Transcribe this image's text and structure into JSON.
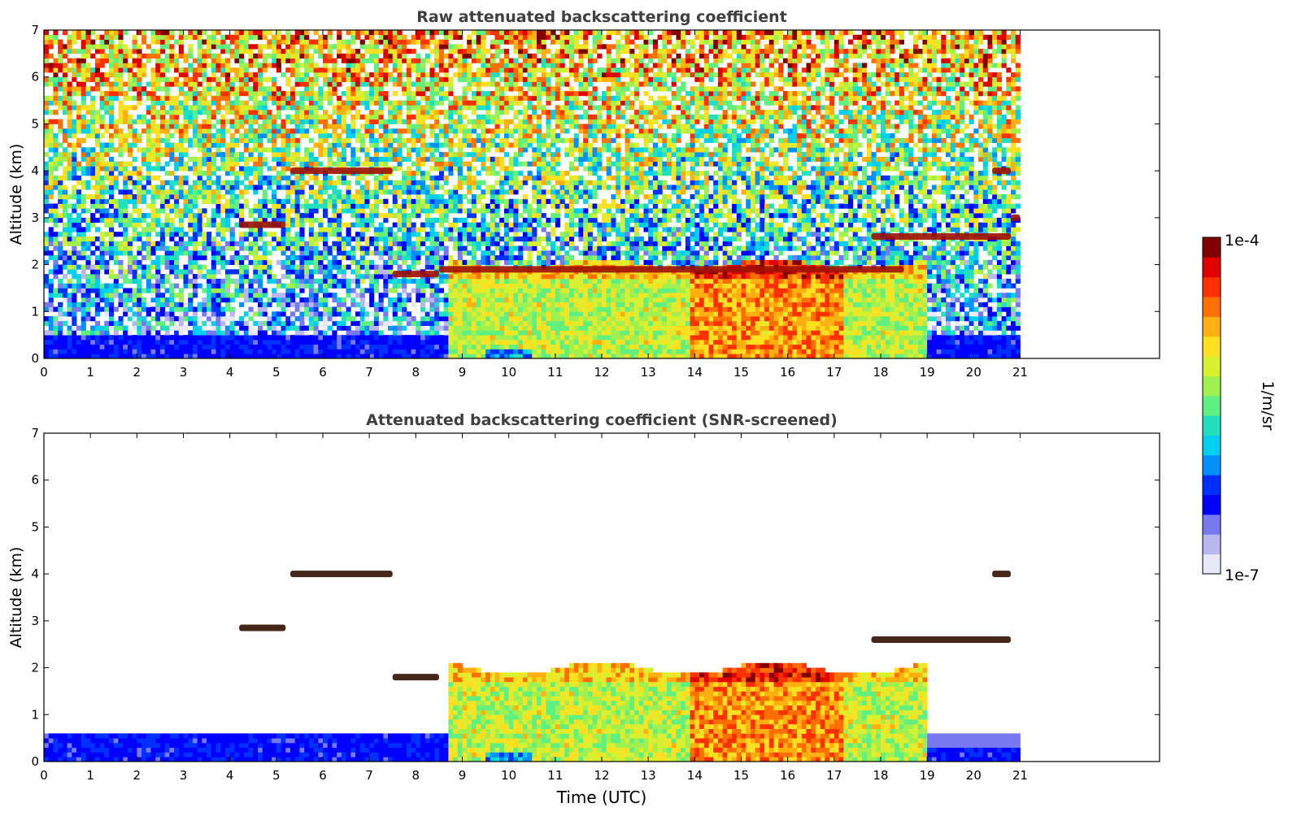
{
  "figure": {
    "colorbar": {
      "label": "1/m/sr",
      "top_label": "1e-4",
      "bottom_label": "1e-7",
      "scale": "log",
      "colormap": "jet",
      "colors": [
        "#e8e8f8",
        "#b8b8ee",
        "#7878f0",
        "#0000ff",
        "#0030ff",
        "#0090ff",
        "#00d0f0",
        "#20e0c0",
        "#60f080",
        "#a0f050",
        "#d8f030",
        "#ffe020",
        "#ffb010",
        "#ff7000",
        "#ff3000",
        "#e00000",
        "#800000"
      ]
    },
    "shared_xlabel": "Time (UTC)"
  },
  "chart_data": [
    {
      "type": "heatmap",
      "title": "Raw attenuated backscattering coefficient",
      "xlabel": "",
      "ylabel": "Altitude (km)",
      "xlim": [
        0,
        24
      ],
      "ylim": [
        0,
        7
      ],
      "xticks": [
        "0",
        "1",
        "2",
        "3",
        "4",
        "5",
        "6",
        "7",
        "8",
        "9",
        "10",
        "11",
        "12",
        "13",
        "14",
        "15",
        "16",
        "17",
        "18",
        "19",
        "20",
        "21"
      ],
      "yticks": [
        "0",
        "1",
        "2",
        "3",
        "4",
        "5",
        "6",
        "7"
      ],
      "data_extent_hours": [
        0,
        21
      ],
      "features": [
        {
          "kind": "surface_layer",
          "t_start": 0,
          "t_end": 8.7,
          "alt_top": 0.5,
          "level": "low"
        },
        {
          "kind": "boundary_layer",
          "t_start": 8.7,
          "t_end": 19.0,
          "alt_top": 2.0,
          "level": "high"
        },
        {
          "kind": "cloud",
          "t_start": 4.2,
          "t_end": 5.2,
          "alt": 2.85
        },
        {
          "kind": "cloud",
          "t_start": 5.3,
          "t_end": 7.5,
          "alt": 4.0
        },
        {
          "kind": "cloud",
          "t_start": 7.5,
          "t_end": 8.5,
          "alt": 1.8
        },
        {
          "kind": "cloud",
          "t_start": 8.5,
          "t_end": 18.5,
          "alt": 1.9
        },
        {
          "kind": "cloud",
          "t_start": 17.8,
          "t_end": 20.8,
          "alt": 2.6
        },
        {
          "kind": "cloud",
          "t_start": 20.4,
          "t_end": 20.8,
          "alt": 4.0
        },
        {
          "kind": "cloud",
          "t_start": 20.8,
          "t_end": 21.0,
          "alt": 3.0
        }
      ]
    },
    {
      "type": "heatmap",
      "title": "Attenuated backscattering coefficient (SNR-screened)",
      "xlabel": "Time (UTC)",
      "ylabel": "Altitude (km)",
      "xlim": [
        0,
        24
      ],
      "ylim": [
        0,
        7
      ],
      "xticks": [
        "0",
        "1",
        "2",
        "3",
        "4",
        "5",
        "6",
        "7",
        "8",
        "9",
        "10",
        "11",
        "12",
        "13",
        "14",
        "15",
        "16",
        "17",
        "18",
        "19",
        "20",
        "21"
      ],
      "yticks": [
        "0",
        "1",
        "2",
        "3",
        "4",
        "5",
        "6",
        "7"
      ],
      "data_extent_hours": [
        0,
        21
      ],
      "features": [
        {
          "kind": "surface_layer",
          "t_start": 0,
          "t_end": 8.7,
          "alt_top": 0.6,
          "level": "low"
        },
        {
          "kind": "boundary_layer",
          "t_start": 8.7,
          "t_end": 19.0,
          "alt_top": 2.0,
          "level": "high"
        },
        {
          "kind": "cloud",
          "t_start": 4.2,
          "t_end": 5.2,
          "alt": 2.85
        },
        {
          "kind": "cloud",
          "t_start": 5.3,
          "t_end": 7.5,
          "alt": 4.0
        },
        {
          "kind": "cloud",
          "t_start": 7.5,
          "t_end": 8.5,
          "alt": 1.8
        },
        {
          "kind": "cloud",
          "t_start": 17.8,
          "t_end": 20.8,
          "alt": 2.6
        },
        {
          "kind": "cloud",
          "t_start": 20.4,
          "t_end": 20.8,
          "alt": 4.0
        }
      ]
    }
  ]
}
